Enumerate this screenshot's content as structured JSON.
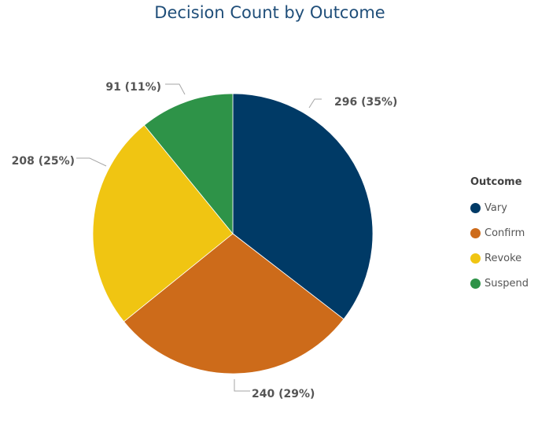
{
  "chart_data": {
    "type": "pie",
    "title": "Decision Count by Outcome",
    "legend_title": "Outcome",
    "legend_position": "right",
    "categories": [
      "Vary",
      "Confirm",
      "Revoke",
      "Suspend"
    ],
    "values": [
      296,
      240,
      208,
      91
    ],
    "data_labels": [
      "296 (35%)",
      "240 (29%)",
      "208 (25%)",
      "91 (11%)"
    ],
    "colors": [
      "#003a66",
      "#cd6b1a",
      "#f0c512",
      "#2e9348"
    ]
  }
}
